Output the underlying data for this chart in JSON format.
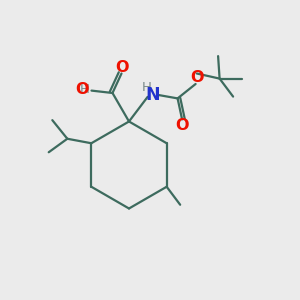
{
  "bg_color": "#ebebeb",
  "bond_color": "#3d6b5e",
  "O_color": "#ee1100",
  "N_color": "#2233cc",
  "H_color": "#7a8a8a",
  "line_width": 1.6,
  "font_size": 10.5,
  "figsize": [
    3.0,
    3.0
  ],
  "dpi": 100,
  "xlim": [
    0,
    10
  ],
  "ylim": [
    0,
    10
  ]
}
